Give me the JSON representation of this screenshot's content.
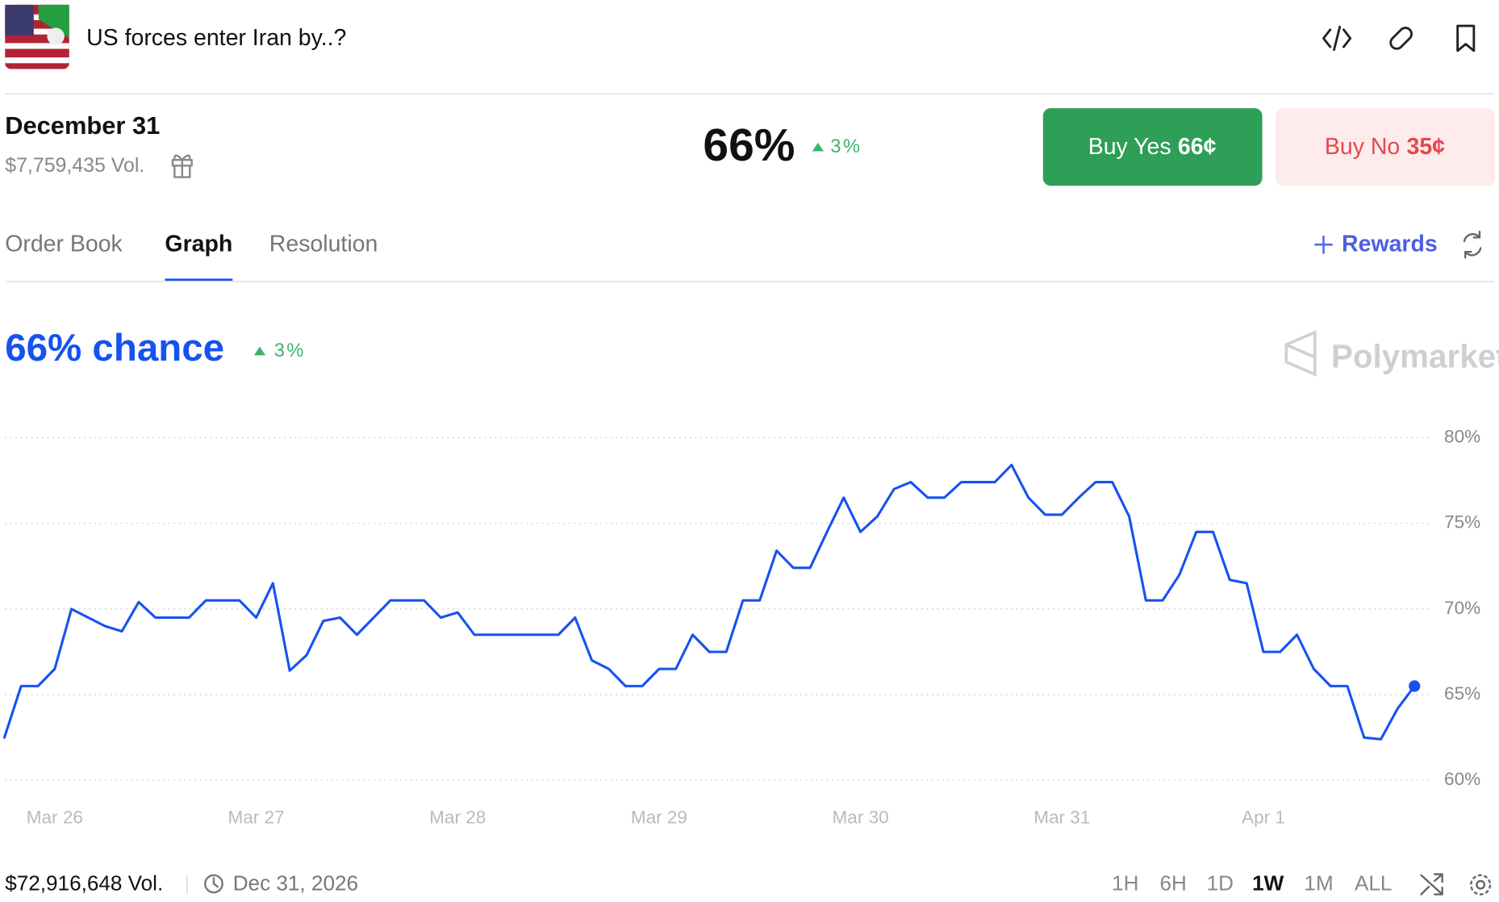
{
  "header": {
    "title": "US forces enter Iran by..?"
  },
  "market": {
    "date": "December 31",
    "volume": "$7,759,435 Vol.",
    "probability": "66%",
    "change": "3%",
    "buy_yes": {
      "label": "Buy Yes",
      "price": "66¢"
    },
    "buy_no": {
      "label": "Buy No",
      "price": "35¢"
    }
  },
  "tabs": {
    "items": [
      "Order Book",
      "Graph",
      "Resolution"
    ],
    "selected": "Graph",
    "rewards": "Rewards"
  },
  "chart_data": {
    "type": "line",
    "title": "66% chance",
    "change": "3%",
    "watermark": "Polymarket",
    "categories": [
      null,
      null,
      null,
      "Mar 26",
      null,
      null,
      null,
      null,
      null,
      null,
      null,
      null,
      null,
      null,
      null,
      "Mar 27",
      null,
      null,
      null,
      null,
      null,
      null,
      null,
      null,
      null,
      null,
      null,
      "Mar 28",
      null,
      null,
      null,
      null,
      null,
      null,
      null,
      null,
      null,
      null,
      null,
      "Mar 29",
      null,
      null,
      null,
      null,
      null,
      null,
      null,
      null,
      null,
      null,
      null,
      "Mar 30",
      null,
      null,
      null,
      null,
      null,
      null,
      null,
      null,
      null,
      null,
      null,
      "Mar 31",
      null,
      null,
      null,
      null,
      null,
      null,
      null,
      null,
      null,
      null,
      null,
      "Apr 1",
      null,
      null,
      null,
      null,
      null,
      null,
      null,
      null,
      null
    ],
    "series": [
      {
        "color": "#1652f0",
        "values": [
          62.5,
          65.5,
          65.5,
          66.5,
          70,
          69.5,
          69,
          68.7,
          70.4,
          69.5,
          69.5,
          69.5,
          70.5,
          70.5,
          70.5,
          69.5,
          71.5,
          66.4,
          67.3,
          69.3,
          69.5,
          68.5,
          69.5,
          70.5,
          70.5,
          70.5,
          69.5,
          69.8,
          68.5,
          68.5,
          68.5,
          68.5,
          68.5,
          68.5,
          69.5,
          67,
          66.5,
          65.5,
          65.5,
          66.5,
          66.5,
          68.5,
          67.5,
          67.5,
          70.5,
          70.5,
          73.4,
          72.4,
          72.4,
          74.5,
          76.5,
          74.5,
          75.4,
          77,
          77.4,
          76.5,
          76.5,
          77.4,
          77.4,
          77.4,
          78.4,
          76.5,
          75.5,
          75.5,
          76.5,
          77.4,
          77.4,
          75.4,
          70.5,
          70.5,
          72,
          74.5,
          74.5,
          71.7,
          71.5,
          67.5,
          67.5,
          68.5,
          66.5,
          65.5,
          65.5,
          62.5,
          62.4,
          64.2,
          65.5
        ]
      }
    ],
    "ylim": [
      60,
      80
    ],
    "yticks": [
      {
        "value": 60,
        "label": "60%"
      },
      {
        "value": 65,
        "label": "65%"
      },
      {
        "value": 70,
        "label": "70%"
      },
      {
        "value": 75,
        "label": "75%"
      },
      {
        "value": 80,
        "label": "80%"
      }
    ],
    "grid": true
  },
  "footer": {
    "volume": "$72,916,648 Vol.",
    "end_date": "Dec 31, 2026",
    "ranges": [
      "1H",
      "6H",
      "1D",
      "1W",
      "1M",
      "ALL"
    ],
    "selected_range": "1W"
  }
}
